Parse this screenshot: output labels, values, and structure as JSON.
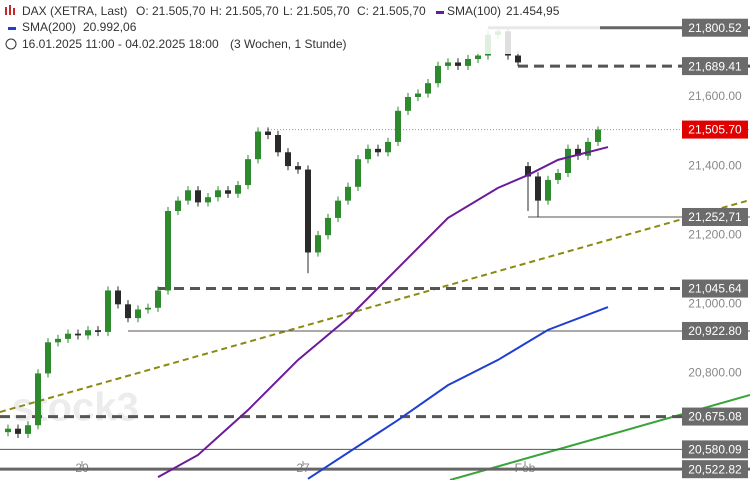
{
  "header": {
    "symbol": "DAX (XETRA, Last)",
    "open": "O: 21.505,70",
    "high": "H: 21.505,70",
    "low": "L: 21.505,70",
    "close": "C: 21.505,70",
    "range": "16.01.2025 11:00 - 04.02.2025 18:00",
    "span": "(3 Wochen, 1 Stunde)",
    "watermark": "stock3"
  },
  "chart_data": {
    "type": "candlestick",
    "up_color": "#2d8a2d",
    "down_color": "#2a2a2a",
    "x": [
      0,
      1,
      2,
      3,
      4,
      5,
      6,
      7,
      8,
      9,
      10,
      11,
      12,
      13,
      14,
      15,
      16,
      17,
      18,
      19,
      20,
      21,
      22,
      23,
      24,
      25,
      26,
      27,
      28,
      29,
      30,
      31,
      32,
      33,
      34,
      35,
      36,
      37,
      38,
      39,
      40,
      41,
      42,
      43,
      44,
      45,
      46,
      47,
      48,
      49,
      50,
      51,
      52,
      53,
      54,
      55,
      56,
      57,
      58,
      59
    ],
    "open": [
      20630,
      20640,
      20625,
      20650,
      20800,
      20890,
      20900,
      20915,
      20910,
      20925,
      20920,
      21040,
      21000,
      20960,
      20985,
      20990,
      21040,
      21270,
      21300,
      21330,
      21295,
      21310,
      21330,
      21320,
      21345,
      21420,
      21500,
      21490,
      21440,
      21400,
      21390,
      21150,
      21200,
      21250,
      21300,
      21340,
      21420,
      21450,
      21440,
      21470,
      21560,
      21600,
      21610,
      21640,
      21690,
      21700,
      21690,
      21710,
      21720,
      21780,
      21790,
      21720,
      21400,
      21370,
      21300,
      21360,
      21380,
      21450,
      21430,
      21470
    ],
    "high": [
      20652,
      20652,
      20662,
      20812,
      20902,
      20912,
      20927,
      20927,
      20937,
      20937,
      21052,
      21052,
      21012,
      20997,
      21002,
      21052,
      21282,
      21312,
      21342,
      21342,
      21322,
      21342,
      21342,
      21357,
      21432,
      21512,
      21512,
      21502,
      21452,
      21412,
      21402,
      21212,
      21262,
      21312,
      21352,
      21432,
      21462,
      21462,
      21482,
      21572,
      21612,
      21622,
      21652,
      21702,
      21712,
      21712,
      21722,
      21732,
      21792,
      21800.52,
      21798,
      21732,
      21412,
      21382,
      21372,
      21392,
      21462,
      21462,
      21482,
      21515
    ],
    "low": [
      20618,
      20613,
      20613,
      20638,
      20788,
      20878,
      20888,
      20898,
      20898,
      20908,
      20908,
      20988,
      20948,
      20948,
      20973,
      20978,
      21028,
      21258,
      21288,
      21283,
      21283,
      21298,
      21308,
      21308,
      21333,
      21408,
      21478,
      21428,
      21388,
      21378,
      21090,
      21138,
      21188,
      21238,
      21288,
      21328,
      21408,
      21428,
      21428,
      21458,
      21548,
      21588,
      21598,
      21628,
      21678,
      21678,
      21678,
      21698,
      21708,
      21768,
      21708,
      21689.41,
      21270,
      21252.71,
      21288,
      21348,
      21368,
      21418,
      21418,
      21458
    ],
    "close": [
      20640,
      20625,
      20650,
      20800,
      20890,
      20900,
      20915,
      20910,
      20925,
      20920,
      21040,
      21000,
      20960,
      20985,
      20990,
      21040,
      21270,
      21300,
      21330,
      21295,
      21310,
      21330,
      21320,
      21345,
      21420,
      21500,
      21490,
      21440,
      21400,
      21390,
      21150,
      21200,
      21250,
      21300,
      21340,
      21420,
      21450,
      21440,
      21470,
      21560,
      21600,
      21610,
      21640,
      21690,
      21700,
      21690,
      21710,
      21720,
      21780,
      21790,
      21720,
      21700,
      21370,
      21300,
      21360,
      21380,
      21450,
      21430,
      21470,
      21505.7
    ],
    "overlays": [
      {
        "name": "SMA(100)",
        "value_label": "21.454,95",
        "color": "#6a1b9a",
        "x": [
          15,
          19,
          24,
          29,
          34,
          39,
          44,
          49,
          52,
          55,
          60
        ],
        "values": [
          20500,
          20564,
          20694,
          20839,
          20960,
          21105,
          21250,
          21337,
          21374,
          21418,
          21455
        ]
      },
      {
        "name": "SMA(200)",
        "value_label": "20.992,06",
        "color": "#1f3fd0",
        "x": [
          30,
          39,
          44,
          49,
          54,
          60
        ],
        "values": [
          20495,
          20665,
          20766,
          20839,
          20926,
          20992
        ]
      }
    ],
    "levels": [
      {
        "value": 21800.52,
        "label": "21,800.52",
        "style": "solid",
        "from": 48
      },
      {
        "value": 21689.41,
        "label": "21,689.41",
        "style": "dashed",
        "from": 51
      },
      {
        "value": 21505.7,
        "label": "21,505.70",
        "style": "current",
        "from": 26
      },
      {
        "value": 21252.71,
        "label": "21,252,71",
        "style": "thin",
        "from": 52
      },
      {
        "value": 21045.64,
        "label": "21,045.64",
        "style": "dashed",
        "from": 15
      },
      {
        "value": 20922.8,
        "label": "20,922.80",
        "style": "thin",
        "from": 12
      },
      {
        "value": 20675.08,
        "label": "20,675.08",
        "style": "dashed",
        "from": -0.8
      },
      {
        "value": 20580.09,
        "label": "20,580.09",
        "style": "thin",
        "from": -0.8
      },
      {
        "value": 20522.82,
        "label": "20,522.82",
        "style": "solid",
        "from": -0.8
      }
    ],
    "xlim": [
      -0.8,
      67.2
    ],
    "xticks": [
      {
        "value": 7.4,
        "label": "20"
      },
      {
        "value": 29.5,
        "label": "27"
      },
      {
        "value": 51.7,
        "label": "Feb"
      }
    ],
    "ylim": [
      20491.5,
      21880.7
    ],
    "yticks": [
      {
        "value": 21600,
        "label": "21,600.00"
      },
      {
        "value": 21400,
        "label": "21,400.00"
      },
      {
        "value": 21200,
        "label": "21,200.00"
      },
      {
        "value": 21000,
        "label": "21,000.00"
      },
      {
        "value": 20800,
        "label": "20,800.00"
      }
    ],
    "grid": false
  }
}
